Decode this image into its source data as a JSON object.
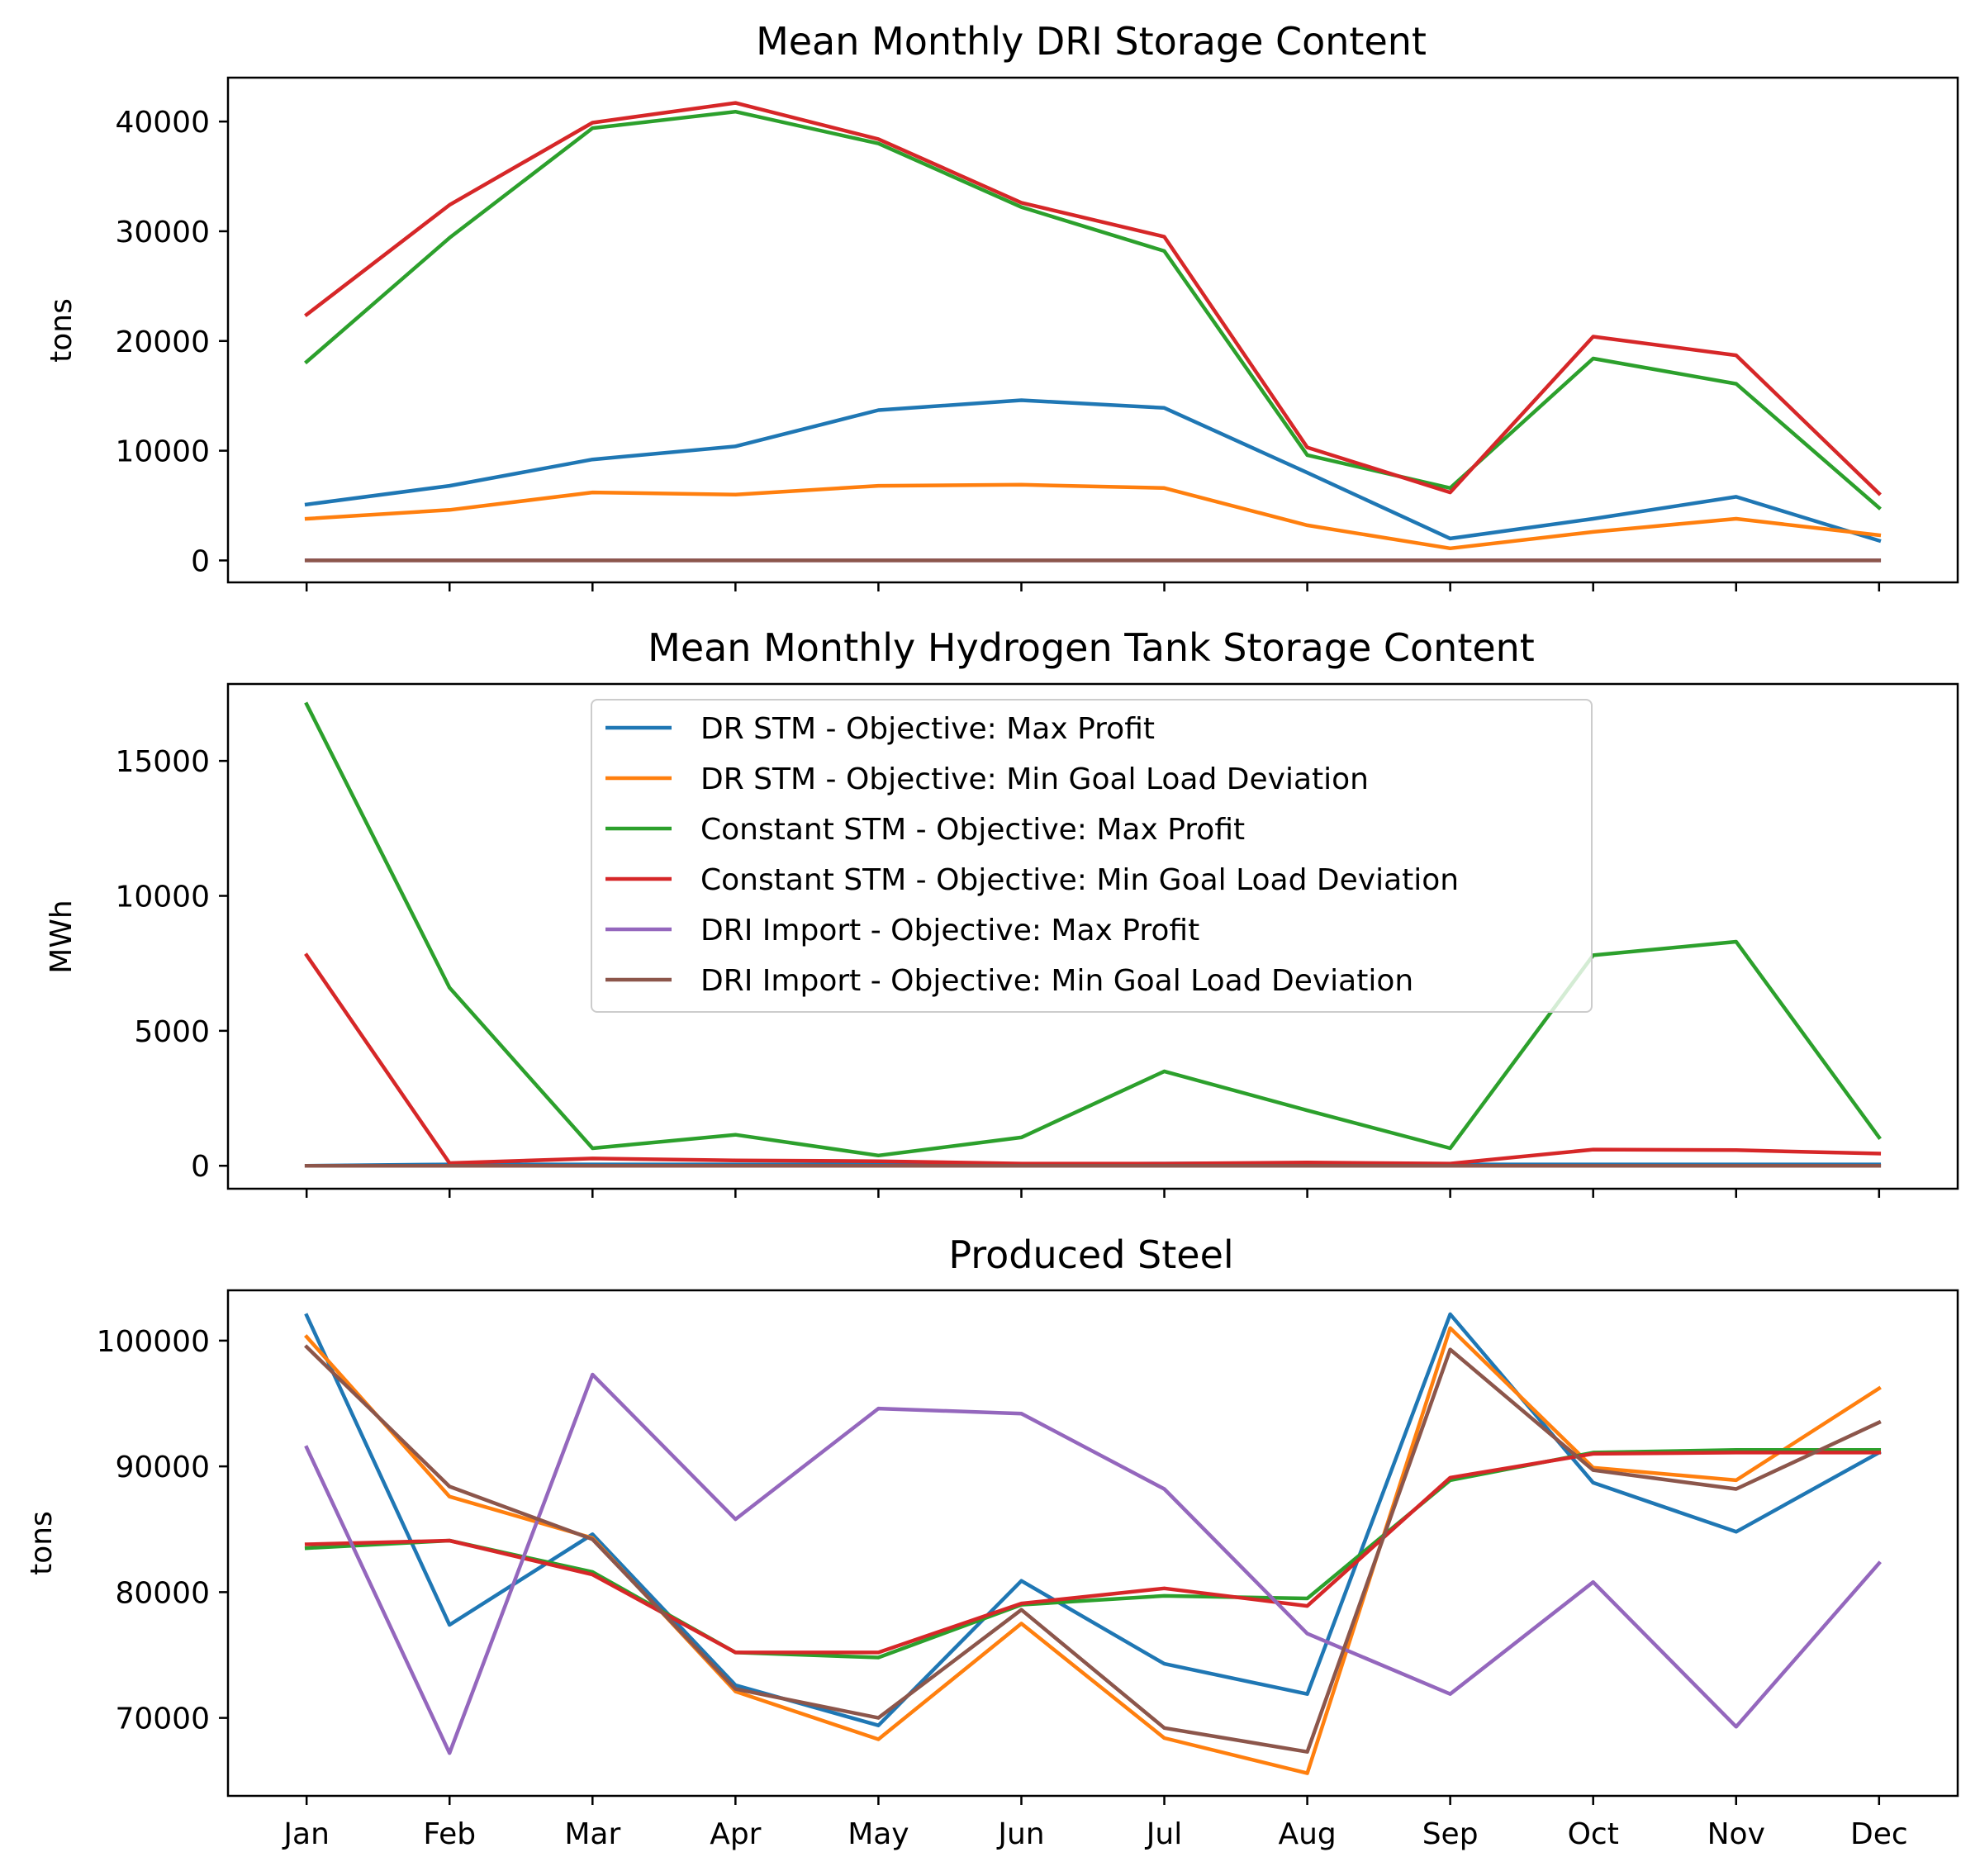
{
  "chart_data": [
    {
      "type": "line",
      "title": "Mean Monthly DRI Storage Content",
      "xlabel": "",
      "ylabel": "tons",
      "categories": [
        "Jan",
        "Feb",
        "Mar",
        "Apr",
        "May",
        "Jun",
        "Jul",
        "Aug",
        "Sep",
        "Oct",
        "Nov",
        "Dec"
      ],
      "show_x_ticklabels": false,
      "ylim": [
        -2000,
        44000
      ],
      "yticks": [
        0,
        10000,
        20000,
        30000,
        40000
      ],
      "grid": false,
      "series": [
        {
          "name": "DR STM - Objective: Max Profit",
          "color": "#1f77b4",
          "values": [
            5100,
            6800,
            9200,
            10400,
            13700,
            14600,
            13900,
            8000,
            2000,
            3800,
            5800,
            1800
          ]
        },
        {
          "name": "DR STM - Objective: Min Goal Load Deviation",
          "color": "#ff7f0e",
          "values": [
            3800,
            4600,
            6200,
            6000,
            6800,
            6900,
            6600,
            3200,
            1100,
            2600,
            3800,
            2300
          ]
        },
        {
          "name": "Constant STM - Objective: Max Profit",
          "color": "#2ca02c",
          "values": [
            18100,
            29400,
            39400,
            40900,
            38000,
            32200,
            28200,
            9600,
            6600,
            18400,
            16100,
            4800
          ]
        },
        {
          "name": "Constant STM - Objective: Min Goal Load Deviation",
          "color": "#d62728",
          "values": [
            22400,
            32400,
            39900,
            41700,
            38400,
            32600,
            29500,
            10300,
            6200,
            20400,
            18700,
            6100
          ]
        },
        {
          "name": "DRI Import - Objective: Max Profit",
          "color": "#9467bd",
          "values": [
            0,
            0,
            0,
            0,
            0,
            0,
            0,
            0,
            0,
            0,
            0,
            0
          ]
        },
        {
          "name": "DRI Import - Objective: Min Goal Load Deviation",
          "color": "#8c564b",
          "values": [
            0,
            0,
            0,
            0,
            0,
            0,
            0,
            0,
            0,
            0,
            0,
            0
          ]
        }
      ]
    },
    {
      "type": "line",
      "title": "Mean Monthly Hydrogen Tank Storage Content",
      "xlabel": "",
      "ylabel": "MWh",
      "categories": [
        "Jan",
        "Feb",
        "Mar",
        "Apr",
        "May",
        "Jun",
        "Jul",
        "Aug",
        "Sep",
        "Oct",
        "Nov",
        "Dec"
      ],
      "show_x_ticklabels": false,
      "ylim": [
        -850,
        17850
      ],
      "yticks": [
        0,
        5000,
        10000,
        15000
      ],
      "grid": false,
      "legend": "upper center",
      "series": [
        {
          "name": "DR STM - Objective: Max Profit",
          "color": "#1f77b4",
          "values": [
            0,
            50,
            50,
            50,
            50,
            50,
            80,
            100,
            50,
            50,
            50,
            50
          ]
        },
        {
          "name": "DR STM - Objective: Min Goal Load Deviation",
          "color": "#ff7f0e",
          "values": [
            0,
            0,
            0,
            0,
            0,
            0,
            0,
            0,
            0,
            0,
            0,
            0
          ]
        },
        {
          "name": "Constant STM - Objective: Max Profit",
          "color": "#2ca02c",
          "values": [
            17100,
            6600,
            650,
            1150,
            380,
            1050,
            3500,
            2050,
            650,
            7800,
            8300,
            1050
          ]
        },
        {
          "name": "Constant STM - Objective: Min Goal Load Deviation",
          "color": "#d62728",
          "values": [
            7800,
            100,
            270,
            200,
            170,
            80,
            80,
            120,
            80,
            600,
            580,
            450
          ]
        },
        {
          "name": "DRI Import - Objective: Max Profit",
          "color": "#9467bd",
          "values": [
            0,
            0,
            0,
            0,
            0,
            0,
            0,
            0,
            0,
            0,
            0,
            0
          ]
        },
        {
          "name": "DRI Import - Objective: Min Goal Load Deviation",
          "color": "#8c564b",
          "values": [
            0,
            0,
            0,
            0,
            0,
            0,
            0,
            0,
            0,
            0,
            0,
            0
          ]
        }
      ]
    },
    {
      "type": "line",
      "title": "Produced Steel",
      "xlabel": "",
      "ylabel": "tons",
      "categories": [
        "Jan",
        "Feb",
        "Mar",
        "Apr",
        "May",
        "Jun",
        "Jul",
        "Aug",
        "Sep",
        "Oct",
        "Nov",
        "Dec"
      ],
      "show_x_ticklabels": true,
      "ylim": [
        63800,
        104000
      ],
      "yticks": [
        70000,
        80000,
        90000,
        100000
      ],
      "grid": false,
      "series": [
        {
          "name": "DR STM - Objective: Max Profit",
          "color": "#1f77b4",
          "values": [
            102000,
            77400,
            84600,
            72600,
            69400,
            80900,
            74300,
            71900,
            102100,
            88700,
            84800,
            91100
          ]
        },
        {
          "name": "DR STM - Objective: Min Goal Load Deviation",
          "color": "#ff7f0e",
          "values": [
            100300,
            87600,
            84300,
            72100,
            68300,
            77500,
            68400,
            65600,
            101000,
            89900,
            88900,
            96200
          ]
        },
        {
          "name": "Constant STM - Objective: Max Profit",
          "color": "#2ca02c",
          "values": [
            83500,
            84100,
            81600,
            75200,
            74800,
            79000,
            79700,
            79500,
            88900,
            91100,
            91300,
            91300
          ]
        },
        {
          "name": "Constant STM - Objective: Min Goal Load Deviation",
          "color": "#d62728",
          "values": [
            83800,
            84100,
            81400,
            75200,
            75200,
            79100,
            80300,
            78900,
            89100,
            91000,
            91100,
            91100
          ]
        },
        {
          "name": "DRI Import - Objective: Max Profit",
          "color": "#9467bd",
          "values": [
            91500,
            67200,
            97300,
            85800,
            94600,
            94200,
            88200,
            76700,
            71900,
            80800,
            69300,
            82300
          ]
        },
        {
          "name": "DRI Import - Objective: Min Goal Load Deviation",
          "color": "#8c564b",
          "values": [
            99500,
            88400,
            84200,
            72300,
            70000,
            78600,
            69200,
            67300,
            99300,
            89700,
            88200,
            93500
          ]
        }
      ]
    }
  ]
}
